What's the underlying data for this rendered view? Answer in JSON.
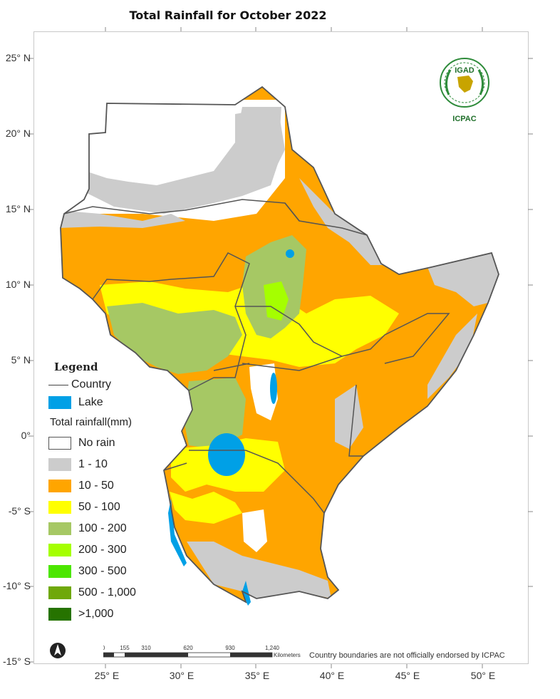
{
  "title": "Total  Rainfall for  October 2022",
  "latitude_labels": [
    "25° N",
    "20° N",
    "15° N",
    "10° N",
    "5° N",
    "0°",
    "-5° S",
    "-10° S",
    "-15° S"
  ],
  "longitude_labels": [
    "25° E",
    "30° E",
    "35° E",
    "40° E",
    "45° E",
    "50° E"
  ],
  "logo": {
    "name": "IGAD",
    "sub": "ICPAC"
  },
  "legend": {
    "title": "Legend",
    "country_label": "Country",
    "lake_label": "Lake",
    "rainfall_heading": "Total rainfall(mm)",
    "classes": [
      {
        "label": "No rain",
        "color": "#ffffff"
      },
      {
        "label": "1 - 10",
        "color": "#cccccc"
      },
      {
        "label": "10 - 50",
        "color": "#ffa500"
      },
      {
        "label": "50 - 100",
        "color": "#ffff00"
      },
      {
        "label": "100 - 200",
        "color": "#a6c864"
      },
      {
        "label": "200 - 300",
        "color": "#a5ff00"
      },
      {
        "label": "300 - 500",
        "color": "#4ce600"
      },
      {
        "label": "500 - 1,000",
        "color": "#6fa80a"
      },
      {
        "label": ">1,000",
        "color": "#267300"
      }
    ],
    "lake_color": "#00a0e6"
  },
  "scale_bar": {
    "ticks": [
      "0",
      "155",
      "310",
      "620",
      "930",
      "1,240"
    ],
    "unit": "Kilometers"
  },
  "disclaimer": "Country boundaries are not officially endorsed by ICPAC"
}
